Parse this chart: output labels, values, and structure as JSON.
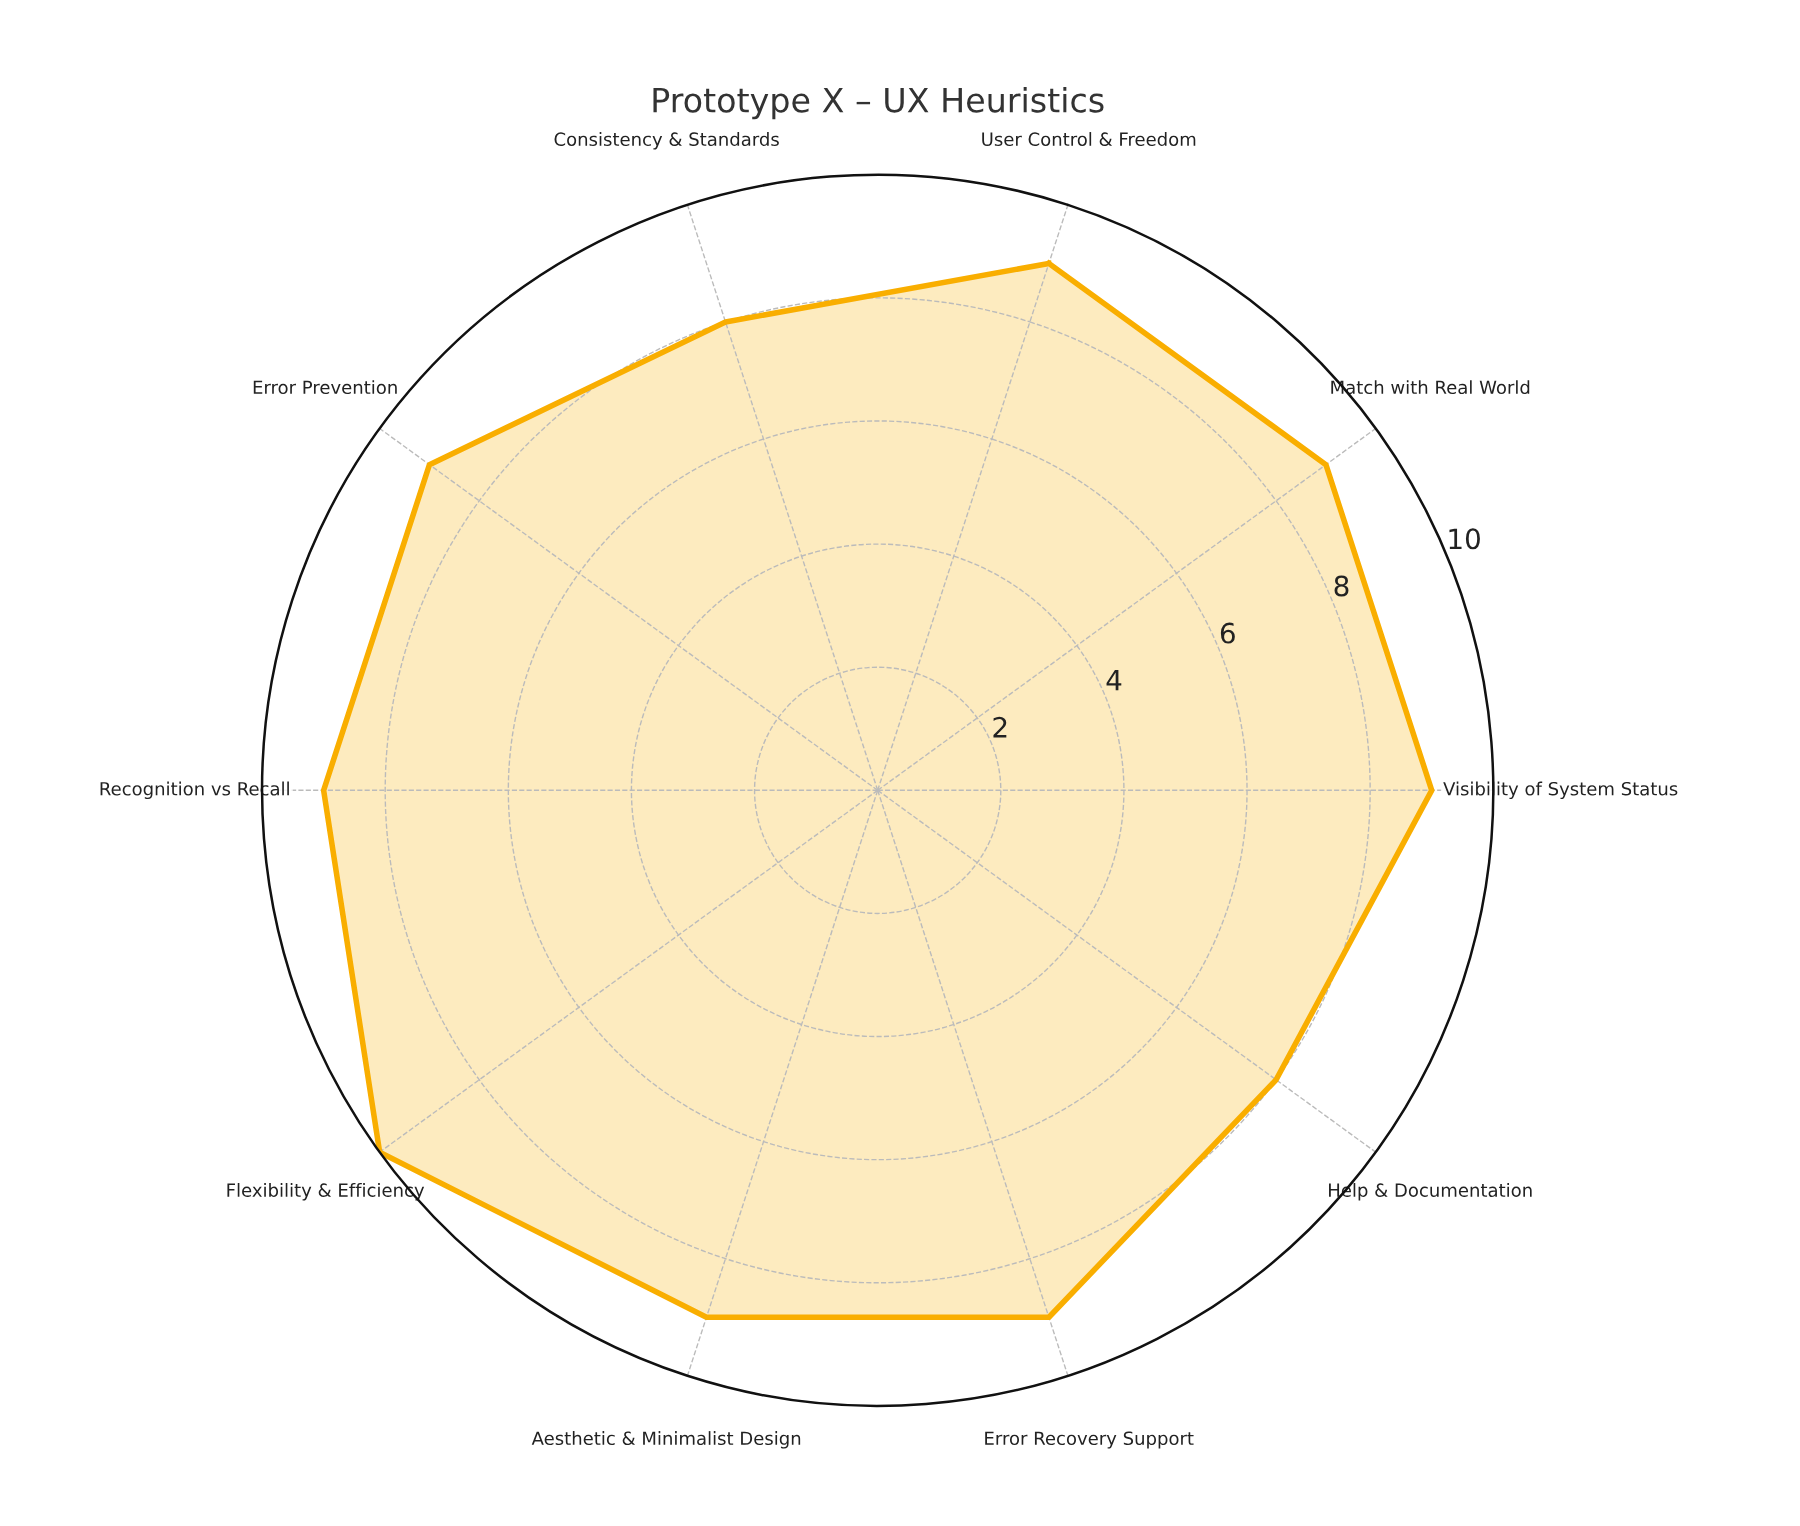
{
  "chart_data": {
    "type": "radar",
    "title": "Prototype X – UX Heuristics",
    "categories": [
      "User Control & Freedom",
      "Match with Real World",
      "Visibility of System Status",
      "Help & Documentation",
      "Error Recovery Support",
      "Aesthetic & Minimalist Design",
      "Flexibility & Efficiency",
      "Recognition vs Recall",
      "Error Prevention",
      "Consistency & Standards"
    ],
    "series": [
      {
        "color": "#f9ae00",
        "values": [
          9,
          9,
          9,
          8,
          9,
          9,
          10,
          9,
          9,
          8
        ]
      }
    ],
    "ylim": [
      0,
      10
    ],
    "yticks": [
      2,
      4,
      6,
      8,
      10
    ],
    "grid": true,
    "marker": "none",
    "line_style": "solid"
  }
}
